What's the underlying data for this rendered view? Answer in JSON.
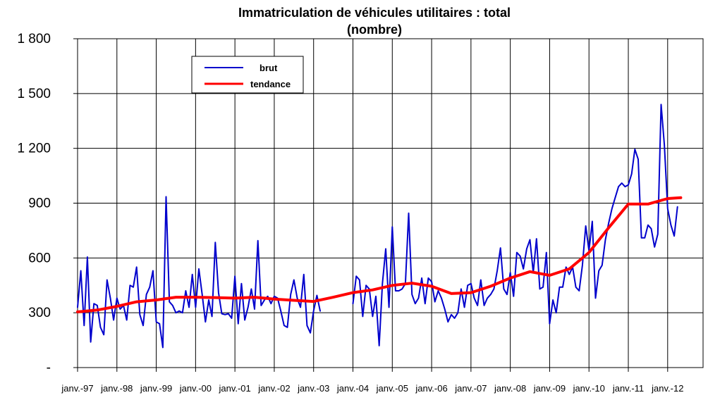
{
  "chart_data": {
    "type": "line",
    "title": "Immatriculation de véhicules utilitaires : total",
    "subtitle": "(nombre)",
    "xlabel": "",
    "ylabel": "",
    "ylim": [
      0,
      1800
    ],
    "y_ticks": [
      {
        "value": 0,
        "label": "-"
      },
      {
        "value": 300,
        "label": "300"
      },
      {
        "value": 600,
        "label": "600"
      },
      {
        "value": 900,
        "label": "900"
      },
      {
        "value": 1200,
        "label": "1 200"
      },
      {
        "value": 1500,
        "label": "1 500"
      },
      {
        "value": 1800,
        "label": "1 800"
      }
    ],
    "x_tick_labels": [
      "janv.-97",
      "janv.-98",
      "janv.-99",
      "janv.-00",
      "janv.-01",
      "janv.-02",
      "janv.-03",
      "janv.-04",
      "janv.-05",
      "janv.-06",
      "janv.-07",
      "janv.-08",
      "janv.-09",
      "janv.-10",
      "janv.-11",
      "janv.-12"
    ],
    "grid": true,
    "legend_position": "top-left",
    "series": [
      {
        "name": "brut",
        "color": "#0000cc",
        "points": [
          [
            "1997-01",
            330
          ],
          [
            "1997-02",
            530
          ],
          [
            "1997-03",
            230
          ],
          [
            "1997-04",
            605
          ],
          [
            "1997-05",
            140
          ],
          [
            "1997-06",
            350
          ],
          [
            "1997-07",
            340
          ],
          [
            "1997-08",
            220
          ],
          [
            "1997-09",
            180
          ],
          [
            "1997-10",
            480
          ],
          [
            "1997-11",
            380
          ],
          [
            "1997-12",
            260
          ],
          [
            "1998-01",
            380
          ],
          [
            "1998-02",
            320
          ],
          [
            "1998-03",
            340
          ],
          [
            "1998-04",
            260
          ],
          [
            "1998-05",
            450
          ],
          [
            "1998-06",
            440
          ],
          [
            "1998-07",
            550
          ],
          [
            "1998-08",
            290
          ],
          [
            "1998-09",
            230
          ],
          [
            "1998-10",
            400
          ],
          [
            "1998-11",
            440
          ],
          [
            "1998-12",
            530
          ],
          [
            "1999-01",
            250
          ],
          [
            "1999-02",
            240
          ],
          [
            "1999-03",
            110
          ],
          [
            "1999-04",
            935
          ],
          [
            "1999-05",
            360
          ],
          [
            "1999-06",
            340
          ],
          [
            "1999-07",
            300
          ],
          [
            "1999-08",
            310
          ],
          [
            "1999-09",
            300
          ],
          [
            "1999-10",
            420
          ],
          [
            "1999-11",
            330
          ],
          [
            "1999-12",
            510
          ],
          [
            "2000-01",
            330
          ],
          [
            "2000-02",
            540
          ],
          [
            "2000-03",
            400
          ],
          [
            "2000-04",
            250
          ],
          [
            "2000-05",
            370
          ],
          [
            "2000-06",
            280
          ],
          [
            "2000-07",
            685
          ],
          [
            "2000-08",
            410
          ],
          [
            "2000-09",
            295
          ],
          [
            "2000-10",
            290
          ],
          [
            "2000-11",
            295
          ],
          [
            "2000-12",
            270
          ],
          [
            "2001-01",
            500
          ],
          [
            "2001-02",
            240
          ],
          [
            "2001-03",
            460
          ],
          [
            "2001-04",
            260
          ],
          [
            "2001-05",
            330
          ],
          [
            "2001-06",
            430
          ],
          [
            "2001-07",
            320
          ],
          [
            "2001-08",
            695
          ],
          [
            "2001-09",
            340
          ],
          [
            "2001-10",
            370
          ],
          [
            "2001-11",
            390
          ],
          [
            "2001-12",
            350
          ],
          [
            "2002-01",
            390
          ],
          [
            "2002-02",
            380
          ],
          [
            "2002-03",
            310
          ],
          [
            "2002-04",
            230
          ],
          [
            "2002-05",
            220
          ],
          [
            "2002-06",
            400
          ],
          [
            "2002-07",
            480
          ],
          [
            "2002-08",
            380
          ],
          [
            "2002-09",
            330
          ],
          [
            "2002-10",
            510
          ],
          [
            "2002-11",
            230
          ],
          [
            "2002-12",
            190
          ],
          [
            "2003-01",
            310
          ],
          [
            "2003-02",
            395
          ],
          [
            "2003-03",
            310
          ],
          [
            "2004-01",
            350
          ],
          [
            "2004-02",
            500
          ],
          [
            "2004-03",
            480
          ],
          [
            "2004-04",
            280
          ],
          [
            "2004-05",
            450
          ],
          [
            "2004-06",
            430
          ],
          [
            "2004-07",
            280
          ],
          [
            "2004-08",
            390
          ],
          [
            "2004-09",
            120
          ],
          [
            "2004-10",
            460
          ],
          [
            "2004-11",
            650
          ],
          [
            "2004-12",
            330
          ],
          [
            "2005-01",
            770
          ],
          [
            "2005-02",
            420
          ],
          [
            "2005-03",
            420
          ],
          [
            "2005-04",
            430
          ],
          [
            "2005-05",
            460
          ],
          [
            "2005-06",
            845
          ],
          [
            "2005-07",
            400
          ],
          [
            "2005-08",
            350
          ],
          [
            "2005-09",
            380
          ],
          [
            "2005-10",
            490
          ],
          [
            "2005-11",
            350
          ],
          [
            "2005-12",
            490
          ],
          [
            "2006-01",
            470
          ],
          [
            "2006-02",
            360
          ],
          [
            "2006-03",
            420
          ],
          [
            "2006-04",
            380
          ],
          [
            "2006-05",
            320
          ],
          [
            "2006-06",
            250
          ],
          [
            "2006-07",
            290
          ],
          [
            "2006-08",
            270
          ],
          [
            "2006-09",
            300
          ],
          [
            "2006-10",
            430
          ],
          [
            "2006-11",
            330
          ],
          [
            "2006-12",
            450
          ],
          [
            "2007-01",
            460
          ],
          [
            "2007-02",
            380
          ],
          [
            "2007-03",
            340
          ],
          [
            "2007-04",
            480
          ],
          [
            "2007-05",
            340
          ],
          [
            "2007-06",
            380
          ],
          [
            "2007-07",
            400
          ],
          [
            "2007-08",
            430
          ],
          [
            "2007-09",
            530
          ],
          [
            "2007-10",
            655
          ],
          [
            "2007-11",
            430
          ],
          [
            "2007-12",
            400
          ],
          [
            "2008-01",
            520
          ],
          [
            "2008-02",
            390
          ],
          [
            "2008-03",
            630
          ],
          [
            "2008-04",
            610
          ],
          [
            "2008-05",
            540
          ],
          [
            "2008-06",
            650
          ],
          [
            "2008-07",
            700
          ],
          [
            "2008-08",
            520
          ],
          [
            "2008-09",
            705
          ],
          [
            "2008-10",
            430
          ],
          [
            "2008-11",
            440
          ],
          [
            "2008-12",
            630
          ],
          [
            "2009-01",
            240
          ],
          [
            "2009-02",
            370
          ],
          [
            "2009-03",
            300
          ],
          [
            "2009-04",
            440
          ],
          [
            "2009-05",
            440
          ],
          [
            "2009-06",
            550
          ],
          [
            "2009-07",
            510
          ],
          [
            "2009-08",
            550
          ],
          [
            "2009-09",
            440
          ],
          [
            "2009-10",
            420
          ],
          [
            "2009-11",
            560
          ],
          [
            "2009-12",
            775
          ],
          [
            "2010-01",
            640
          ],
          [
            "2010-02",
            800
          ],
          [
            "2010-03",
            380
          ],
          [
            "2010-04",
            530
          ],
          [
            "2010-05",
            560
          ],
          [
            "2010-06",
            700
          ],
          [
            "2010-07",
            790
          ],
          [
            "2010-08",
            870
          ],
          [
            "2010-09",
            930
          ],
          [
            "2010-10",
            990
          ],
          [
            "2010-11",
            1010
          ],
          [
            "2010-12",
            990
          ],
          [
            "2011-01",
            1000
          ],
          [
            "2011-02",
            1060
          ],
          [
            "2011-03",
            1195
          ],
          [
            "2011-04",
            1140
          ],
          [
            "2011-05",
            710
          ],
          [
            "2011-06",
            710
          ],
          [
            "2011-07",
            780
          ],
          [
            "2011-08",
            760
          ],
          [
            "2011-09",
            660
          ],
          [
            "2011-10",
            730
          ],
          [
            "2011-11",
            1440
          ],
          [
            "2011-12",
            1220
          ],
          [
            "2012-01",
            870
          ],
          [
            "2012-02",
            780
          ],
          [
            "2012-03",
            720
          ],
          [
            "2012-04",
            880
          ]
        ]
      },
      {
        "name": "tendance",
        "color": "#ff0000",
        "points": [
          [
            "1997-01",
            305
          ],
          [
            "1997-07",
            315
          ],
          [
            "1998-01",
            335
          ],
          [
            "1998-07",
            360
          ],
          [
            "1999-01",
            370
          ],
          [
            "1999-07",
            385
          ],
          [
            "2000-01",
            385
          ],
          [
            "2000-07",
            383
          ],
          [
            "2001-01",
            380
          ],
          [
            "2001-07",
            385
          ],
          [
            "2002-01",
            375
          ],
          [
            "2002-07",
            368
          ],
          [
            "2003-01",
            362
          ],
          [
            "2003-07",
            385
          ],
          [
            "2004-01",
            410
          ],
          [
            "2004-07",
            425
          ],
          [
            "2005-01",
            450
          ],
          [
            "2005-07",
            462
          ],
          [
            "2006-01",
            445
          ],
          [
            "2006-07",
            405
          ],
          [
            "2007-01",
            410
          ],
          [
            "2007-07",
            445
          ],
          [
            "2008-01",
            490
          ],
          [
            "2008-07",
            525
          ],
          [
            "2009-01",
            505
          ],
          [
            "2009-07",
            540
          ],
          [
            "2010-01",
            630
          ],
          [
            "2010-07",
            765
          ],
          [
            "2011-01",
            895
          ],
          [
            "2011-07",
            895
          ],
          [
            "2012-01",
            925
          ],
          [
            "2012-05",
            930
          ]
        ]
      }
    ]
  }
}
